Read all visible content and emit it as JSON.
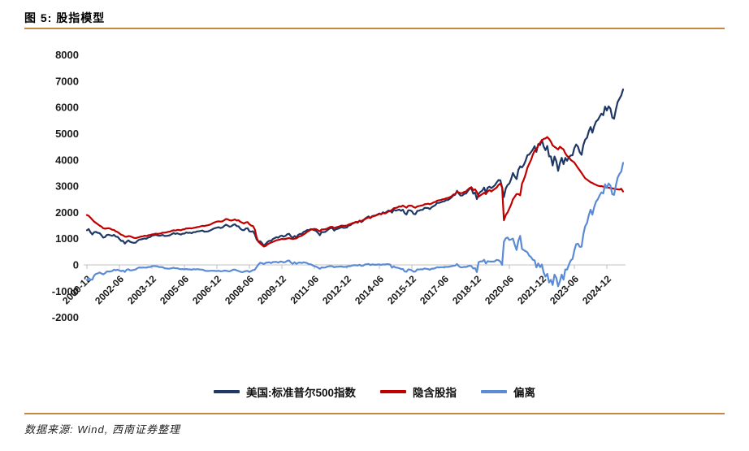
{
  "header": {
    "title": "图 5: 股指模型"
  },
  "footer": {
    "source": "数据来源: Wind, 西南证券整理"
  },
  "colors": {
    "rule": "#C8883B",
    "axis": "#CFCFCF",
    "spx": "#1F3864",
    "implied": "#C00000",
    "deviation": "#5B8BD5"
  },
  "chart_data": {
    "type": "line",
    "title": "股指模型",
    "x_start": "2000-12",
    "x_frequency": "monthly",
    "x_tick_labels": [
      "2000-12",
      "2002-06",
      "2003-12",
      "2005-06",
      "2006-12",
      "2008-06",
      "2009-12",
      "2011-06",
      "2012-12",
      "2014-06",
      "2015-12",
      "2017-06",
      "2018-12",
      "2020-06",
      "2021-12",
      "2023-06",
      "2024-12"
    ],
    "y_ticks": [
      8000,
      7000,
      6000,
      5000,
      4000,
      3000,
      2000,
      1000,
      0,
      -1000,
      -2000
    ],
    "ylim": [
      -2000,
      8000
    ],
    "grid": "zero-line-only",
    "legend_position": "bottom",
    "series": [
      {
        "key": "spx",
        "name": "美国:标准普尔500指数",
        "color": "#1F3864",
        "values": [
          1320,
          1366,
          1240,
          1160,
          1249,
          1256,
          1224,
          1211,
          1134,
          1041,
          1060,
          1139,
          1148,
          1130,
          1107,
          1147,
          1077,
          1067,
          990,
          912,
          916,
          815,
          886,
          936,
          880,
          856,
          841,
          848,
          917,
          964,
          975,
          990,
          1008,
          996,
          1051,
          1058,
          1112,
          1131,
          1145,
          1126,
          1107,
          1121,
          1141,
          1102,
          1104,
          1115,
          1130,
          1174,
          1212,
          1181,
          1204,
          1181,
          1157,
          1192,
          1191,
          1234,
          1220,
          1229,
          1207,
          1249,
          1248,
          1280,
          1281,
          1295,
          1311,
          1270,
          1270,
          1277,
          1304,
          1336,
          1378,
          1401,
          1418,
          1438,
          1407,
          1421,
          1482,
          1531,
          1503,
          1455,
          1474,
          1527,
          1549,
          1481,
          1468,
          1379,
          1331,
          1323,
          1386,
          1400,
          1280,
          1267,
          1283,
          1166,
          969,
          896,
          903,
          826,
          735,
          798,
          873,
          919,
          919,
          987,
          1021,
          1057,
          1036,
          1096,
          1115,
          1074,
          1104,
          1169,
          1187,
          1089,
          1031,
          1102,
          1049,
          1141,
          1183,
          1181,
          1258,
          1286,
          1327,
          1326,
          1364,
          1345,
          1321,
          1292,
          1219,
          1131,
          1253,
          1247,
          1258,
          1312,
          1366,
          1408,
          1398,
          1310,
          1362,
          1379,
          1407,
          1441,
          1412,
          1416,
          1426,
          1498,
          1515,
          1569,
          1598,
          1631,
          1606,
          1686,
          1633,
          1682,
          1757,
          1806,
          1848,
          1783,
          1859,
          1872,
          1884,
          1924,
          1960,
          1931,
          2003,
          1972,
          2018,
          2068,
          2059,
          1995,
          2105,
          2068,
          2086,
          2107,
          2063,
          2104,
          1972,
          1920,
          2079,
          2080,
          2044,
          1940,
          1932,
          2060,
          2065,
          2097,
          2099,
          2174,
          2171,
          2168,
          2126,
          2199,
          2239,
          2279,
          2364,
          2363,
          2384,
          2412,
          2423,
          2470,
          2472,
          2519,
          2575,
          2648,
          2674,
          2824,
          2714,
          2641,
          2648,
          2705,
          2718,
          2816,
          2902,
          2914,
          2712,
          2760,
          2507,
          2704,
          2784,
          2834,
          2946,
          2752,
          2942,
          2980,
          2926,
          2977,
          3038,
          3141,
          3231,
          3226,
          2954,
          2585,
          2912,
          3044,
          3100,
          3271,
          3500,
          3363,
          3270,
          3622,
          3756,
          3714,
          3811,
          3973,
          4181,
          4204,
          4298,
          4395,
          4523,
          4308,
          4605,
          4567,
          4766,
          4516,
          4374,
          4530,
          4132,
          4132,
          3785,
          4130,
          3955,
          3586,
          3872,
          4080,
          3840,
          4077,
          3970,
          4109,
          4169,
          4180,
          4450,
          4589,
          4508,
          4288,
          4194,
          4568,
          4770,
          4846,
          5096,
          5254,
          5036,
          5278,
          5460,
          5522,
          5648,
          5762,
          5705,
          6032,
          5882,
          6041,
          5955,
          5612,
          5569,
          5912,
          6205,
          6339,
          6460,
          6688
        ]
      },
      {
        "key": "implied",
        "name": "隐含股指",
        "color": "#C00000",
        "values": [
          1900,
          1870,
          1800,
          1720,
          1650,
          1600,
          1550,
          1500,
          1460,
          1400,
          1380,
          1390,
          1400,
          1380,
          1340,
          1330,
          1280,
          1250,
          1200,
          1150,
          1130,
          1080,
          1070,
          1100,
          1090,
          1060,
          1030,
          1020,
          1040,
          1060,
          1080,
          1090,
          1110,
          1100,
          1130,
          1140,
          1160,
          1170,
          1190,
          1180,
          1190,
          1200,
          1230,
          1230,
          1240,
          1260,
          1270,
          1300,
          1320,
          1310,
          1330,
          1330,
          1320,
          1350,
          1360,
          1390,
          1390,
          1400,
          1390,
          1410,
          1420,
          1440,
          1450,
          1470,
          1490,
          1480,
          1500,
          1510,
          1530,
          1560,
          1600,
          1630,
          1650,
          1660,
          1650,
          1660,
          1700,
          1750,
          1740,
          1700,
          1690,
          1710,
          1730,
          1690,
          1700,
          1640,
          1610,
          1580,
          1620,
          1630,
          1550,
          1500,
          1480,
          1350,
          1050,
          880,
          820,
          760,
          700,
          720,
          780,
          820,
          850,
          880,
          910,
          940,
          950,
          970,
          990,
          980,
          990,
          1010,
          1020,
          1000,
          990,
          1000,
          1010,
          1060,
          1090,
          1110,
          1160,
          1200,
          1260,
          1300,
          1340,
          1360,
          1370,
          1360,
          1320,
          1280,
          1350,
          1350,
          1360,
          1380,
          1420,
          1450,
          1450,
          1400,
          1430,
          1450,
          1470,
          1500,
          1490,
          1490,
          1500,
          1540,
          1560,
          1590,
          1610,
          1640,
          1630,
          1680,
          1670,
          1710,
          1740,
          1780,
          1810,
          1790,
          1840,
          1860,
          1880,
          1910,
          1940,
          1930,
          1980,
          1960,
          1990,
          2040,
          2050,
          2100,
          2160,
          2170,
          2190,
          2230,
          2220,
          2260,
          2220,
          2180,
          2250,
          2260,
          2250,
          2200,
          2180,
          2230,
          2240,
          2260,
          2270,
          2310,
          2320,
          2330,
          2310,
          2340,
          2380,
          2400,
          2450,
          2460,
          2470,
          2500,
          2510,
          2540,
          2550,
          2580,
          2620,
          2680,
          2700,
          2790,
          2760,
          2730,
          2740,
          2780,
          2800,
          2870,
          2930,
          2960,
          2850,
          2880,
          2780,
          2600,
          2650,
          2700,
          2750,
          2700,
          2800,
          2850,
          2800,
          2850,
          2900,
          2950,
          3050,
          3100,
          2950,
          1700,
          1900,
          2000,
          2150,
          2300,
          2500,
          2600,
          2700,
          2700,
          2650,
          3100,
          3250,
          3450,
          3700,
          3850,
          4000,
          4200,
          4350,
          4400,
          4550,
          4650,
          4750,
          4800,
          4820,
          4870,
          4800,
          4700,
          4550,
          4500,
          4450,
          4400,
          4500,
          4450,
          4400,
          4250,
          4150,
          4100,
          4000,
          3950,
          3900,
          3800,
          3700,
          3600,
          3500,
          3400,
          3300,
          3250,
          3200,
          3150,
          3120,
          3080,
          3050,
          3020,
          3000,
          3000,
          2980,
          2960,
          2950,
          2940,
          2930,
          2920,
          2900,
          2890,
          2880,
          2870,
          2900,
          2800
        ]
      },
      {
        "key": "deviation",
        "name": "偏离",
        "color": "#5B8BD5",
        "values": [
          -580,
          -504,
          -560,
          -560,
          -401,
          -344,
          -326,
          -289,
          -326,
          -359,
          -320,
          -251,
          -252,
          -250,
          -233,
          -183,
          -203,
          -183,
          -210,
          -238,
          -214,
          -265,
          -184,
          -164,
          -210,
          -204,
          -189,
          -172,
          -123,
          -96,
          -105,
          -100,
          -102,
          -104,
          -79,
          -82,
          -48,
          -39,
          -45,
          -54,
          -83,
          -79,
          -89,
          -128,
          -136,
          -145,
          -140,
          -126,
          -108,
          -129,
          -126,
          -149,
          -163,
          -158,
          -169,
          -156,
          -170,
          -171,
          -183,
          -161,
          -172,
          -160,
          -169,
          -175,
          -179,
          -210,
          -230,
          -233,
          -226,
          -224,
          -222,
          -229,
          -232,
          -222,
          -243,
          -239,
          -218,
          -219,
          -237,
          -245,
          -216,
          -183,
          -181,
          -209,
          -232,
          -261,
          -279,
          -257,
          -234,
          -230,
          -270,
          -233,
          -197,
          -184,
          -81,
          16,
          83,
          66,
          35,
          78,
          93,
          99,
          69,
          107,
          111,
          117,
          86,
          126,
          125,
          94,
          114,
          159,
          167,
          89,
          41,
          102,
          39,
          81,
          93,
          71,
          98,
          86,
          67,
          26,
          24,
          -15,
          -49,
          -68,
          -101,
          -149,
          -97,
          -103,
          -102,
          -68,
          -54,
          -42,
          -52,
          -90,
          -68,
          -71,
          -63,
          -59,
          -78,
          -74,
          -74,
          -42,
          -45,
          -21,
          -12,
          -9,
          -24,
          6,
          -37,
          -28,
          17,
          26,
          38,
          -7,
          19,
          12,
          4,
          14,
          20,
          1,
          23,
          12,
          28,
          28,
          9,
          -105,
          -55,
          -102,
          -104,
          -123,
          -157,
          -156,
          -248,
          -260,
          -171,
          -180,
          -206,
          -260,
          -248,
          -170,
          -175,
          -163,
          -171,
          -136,
          -149,
          -162,
          -184,
          -141,
          -141,
          -121,
          -86,
          -97,
          -86,
          -88,
          -87,
          -70,
          -78,
          -61,
          -45,
          -32,
          -26,
          34,
          -46,
          -89,
          -92,
          -75,
          -82,
          -54,
          -28,
          -46,
          -138,
          -120,
          -273,
          104,
          134,
          134,
          196,
          52,
          142,
          130,
          126,
          127,
          138,
          191,
          181,
          126,
          4,
          885,
          1012,
          1044,
          950,
          971,
          1000,
          763,
          570,
          922,
          1106,
          614,
          561,
          523,
          481,
          354,
          298,
          195,
          173,
          -92,
          55,
          -83,
          16,
          -284,
          -446,
          -340,
          -668,
          -568,
          -765,
          -370,
          -495,
          -814,
          -628,
          -370,
          -560,
          -173,
          -180,
          9,
          169,
          230,
          550,
          789,
          808,
          688,
          694,
          1168,
          1470,
          1596,
          1896,
          2104,
          1916,
          2198,
          2410,
          2502,
          2648,
          2762,
          2725,
          3072,
          2932,
          3101,
          3025,
          2692,
          2669,
          3022,
          3325,
          3469,
          3560,
          3888
        ]
      }
    ]
  }
}
